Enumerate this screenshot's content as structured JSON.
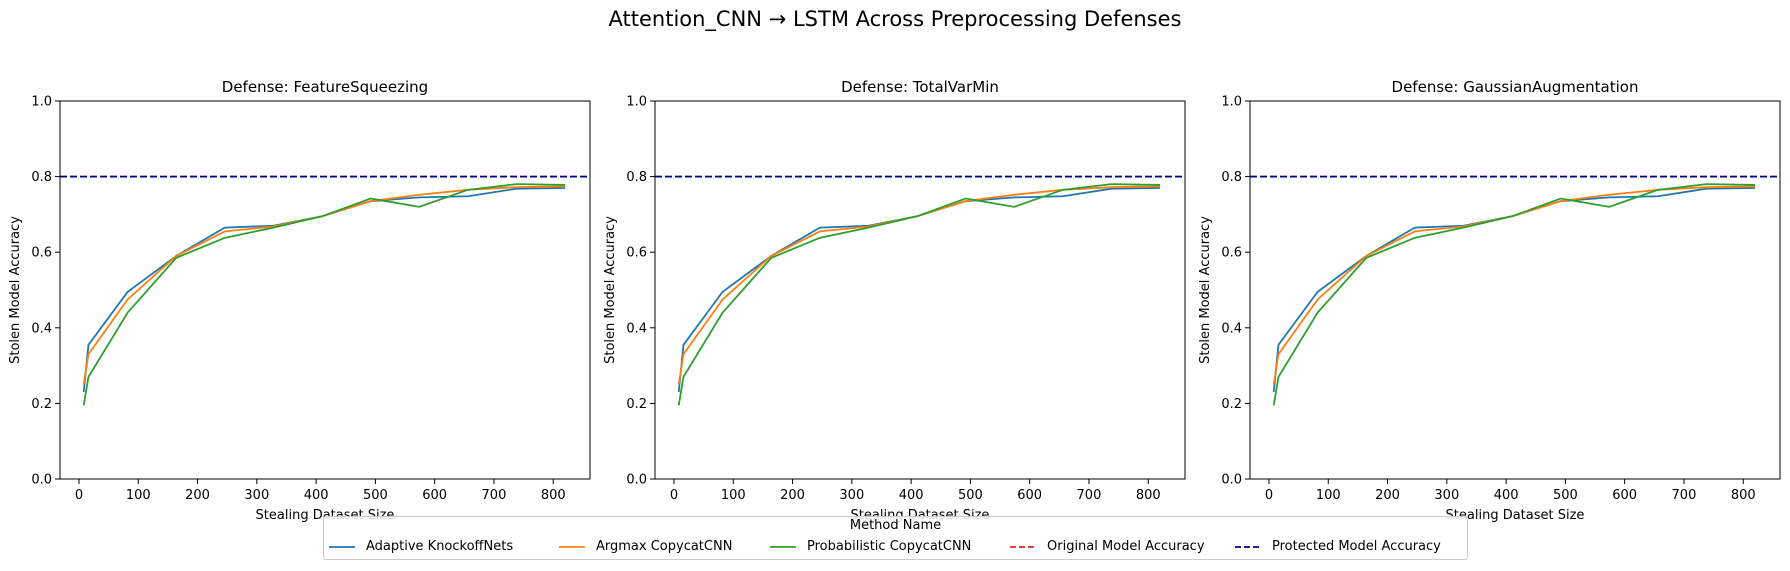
{
  "figure_title": "Attention_CNN → LSTM Across Preprocessing Defenses",
  "chart_data": [
    {
      "type": "line",
      "title": "Defense: FeatureSqueezing",
      "xlabel": "Stealing Dataset Size",
      "ylabel": "Stolen Model Accuracy",
      "xlim": [
        -32,
        862
      ],
      "ylim": [
        0,
        1.0
      ],
      "xticks": [
        0,
        100,
        200,
        300,
        400,
        500,
        600,
        700,
        800
      ],
      "yticks": [
        0.0,
        0.2,
        0.4,
        0.6,
        0.8,
        1.0
      ],
      "grid": false,
      "series": [
        {
          "name": "Adaptive KnockoffNets",
          "color": "#1f77b4",
          "dashed": false,
          "x": [
            8,
            16,
            82,
            164,
            246,
            328,
            410,
            492,
            574,
            656,
            738,
            820
          ],
          "y": [
            0.23,
            0.355,
            0.495,
            0.59,
            0.665,
            0.67,
            0.695,
            0.735,
            0.745,
            0.748,
            0.768,
            0.77
          ]
        },
        {
          "name": "Argmax CopycatCNN",
          "color": "#ff7f0e",
          "dashed": false,
          "x": [
            8,
            16,
            82,
            164,
            246,
            328,
            410,
            492,
            574,
            656,
            738,
            820
          ],
          "y": [
            0.25,
            0.33,
            0.475,
            0.59,
            0.655,
            0.668,
            0.695,
            0.735,
            0.752,
            0.765,
            0.772,
            0.774
          ]
        },
        {
          "name": "Probabilistic CopycatCNN",
          "color": "#2ca02c",
          "dashed": false,
          "x": [
            8,
            16,
            82,
            164,
            246,
            328,
            410,
            492,
            574,
            656,
            738,
            820
          ],
          "y": [
            0.195,
            0.27,
            0.44,
            0.585,
            0.638,
            0.665,
            0.695,
            0.742,
            0.72,
            0.765,
            0.78,
            0.778
          ]
        },
        {
          "name": "Original Model Accuracy",
          "color": "#d62728",
          "dashed": true,
          "x": [
            -32,
            862
          ],
          "y": [
            0.8,
            0.8
          ]
        },
        {
          "name": "Protected Model Accuracy",
          "color": "#00008b",
          "dashed": true,
          "x": [
            -32,
            862
          ],
          "y": [
            0.8,
            0.8
          ]
        }
      ]
    },
    {
      "type": "line",
      "title": "Defense: TotalVarMin",
      "xlabel": "Stealing Dataset Size",
      "ylabel": "Stolen Model Accuracy",
      "xlim": [
        -32,
        862
      ],
      "ylim": [
        0,
        1.0
      ],
      "xticks": [
        0,
        100,
        200,
        300,
        400,
        500,
        600,
        700,
        800
      ],
      "yticks": [
        0.0,
        0.2,
        0.4,
        0.6,
        0.8,
        1.0
      ],
      "grid": false,
      "series": [
        {
          "name": "Adaptive KnockoffNets",
          "color": "#1f77b4",
          "dashed": false,
          "x": [
            8,
            16,
            82,
            164,
            246,
            328,
            410,
            492,
            574,
            656,
            738,
            820
          ],
          "y": [
            0.23,
            0.355,
            0.495,
            0.59,
            0.665,
            0.67,
            0.695,
            0.735,
            0.745,
            0.748,
            0.768,
            0.77
          ]
        },
        {
          "name": "Argmax CopycatCNN",
          "color": "#ff7f0e",
          "dashed": false,
          "x": [
            8,
            16,
            82,
            164,
            246,
            328,
            410,
            492,
            574,
            656,
            738,
            820
          ],
          "y": [
            0.25,
            0.33,
            0.475,
            0.59,
            0.655,
            0.668,
            0.695,
            0.735,
            0.752,
            0.765,
            0.772,
            0.774
          ]
        },
        {
          "name": "Probabilistic CopycatCNN",
          "color": "#2ca02c",
          "dashed": false,
          "x": [
            8,
            16,
            82,
            164,
            246,
            328,
            410,
            492,
            574,
            656,
            738,
            820
          ],
          "y": [
            0.195,
            0.27,
            0.44,
            0.585,
            0.638,
            0.665,
            0.695,
            0.742,
            0.72,
            0.765,
            0.78,
            0.778
          ]
        },
        {
          "name": "Original Model Accuracy",
          "color": "#d62728",
          "dashed": true,
          "x": [
            -32,
            862
          ],
          "y": [
            0.8,
            0.8
          ]
        },
        {
          "name": "Protected Model Accuracy",
          "color": "#00008b",
          "dashed": true,
          "x": [
            -32,
            862
          ],
          "y": [
            0.8,
            0.8
          ]
        }
      ]
    },
    {
      "type": "line",
      "title": "Defense: GaussianAugmentation",
      "xlabel": "Stealing Dataset Size",
      "ylabel": "Stolen Model Accuracy",
      "xlim": [
        -32,
        862
      ],
      "ylim": [
        0,
        1.0
      ],
      "xticks": [
        0,
        100,
        200,
        300,
        400,
        500,
        600,
        700,
        800
      ],
      "yticks": [
        0.0,
        0.2,
        0.4,
        0.6,
        0.8,
        1.0
      ],
      "grid": false,
      "series": [
        {
          "name": "Adaptive KnockoffNets",
          "color": "#1f77b4",
          "dashed": false,
          "x": [
            8,
            16,
            82,
            164,
            246,
            328,
            410,
            492,
            574,
            656,
            738,
            820
          ],
          "y": [
            0.23,
            0.355,
            0.495,
            0.59,
            0.665,
            0.67,
            0.695,
            0.735,
            0.745,
            0.748,
            0.768,
            0.77
          ]
        },
        {
          "name": "Argmax CopycatCNN",
          "color": "#ff7f0e",
          "dashed": false,
          "x": [
            8,
            16,
            82,
            164,
            246,
            328,
            410,
            492,
            574,
            656,
            738,
            820
          ],
          "y": [
            0.25,
            0.33,
            0.475,
            0.59,
            0.655,
            0.668,
            0.695,
            0.735,
            0.752,
            0.765,
            0.772,
            0.774
          ]
        },
        {
          "name": "Probabilistic CopycatCNN",
          "color": "#2ca02c",
          "dashed": false,
          "x": [
            8,
            16,
            82,
            164,
            246,
            328,
            410,
            492,
            574,
            656,
            738,
            820
          ],
          "y": [
            0.195,
            0.27,
            0.44,
            0.585,
            0.638,
            0.665,
            0.695,
            0.742,
            0.72,
            0.765,
            0.78,
            0.778
          ]
        },
        {
          "name": "Original Model Accuracy",
          "color": "#d62728",
          "dashed": true,
          "x": [
            -32,
            862
          ],
          "y": [
            0.8,
            0.8
          ]
        },
        {
          "name": "Protected Model Accuracy",
          "color": "#00008b",
          "dashed": true,
          "x": [
            -32,
            862
          ],
          "y": [
            0.8,
            0.8
          ]
        }
      ]
    }
  ],
  "legend": {
    "title": "Method Name",
    "placement": "bottom-center",
    "items": [
      {
        "label": "Adaptive KnockoffNets",
        "color": "#1f77b4",
        "dashed": false
      },
      {
        "label": "Argmax CopycatCNN",
        "color": "#ff7f0e",
        "dashed": false
      },
      {
        "label": "Probabilistic CopycatCNN",
        "color": "#2ca02c",
        "dashed": false
      },
      {
        "label": "Original Model Accuracy",
        "color": "#d62728",
        "dashed": true
      },
      {
        "label": "Protected Model Accuracy",
        "color": "#00008b",
        "dashed": true
      }
    ]
  }
}
